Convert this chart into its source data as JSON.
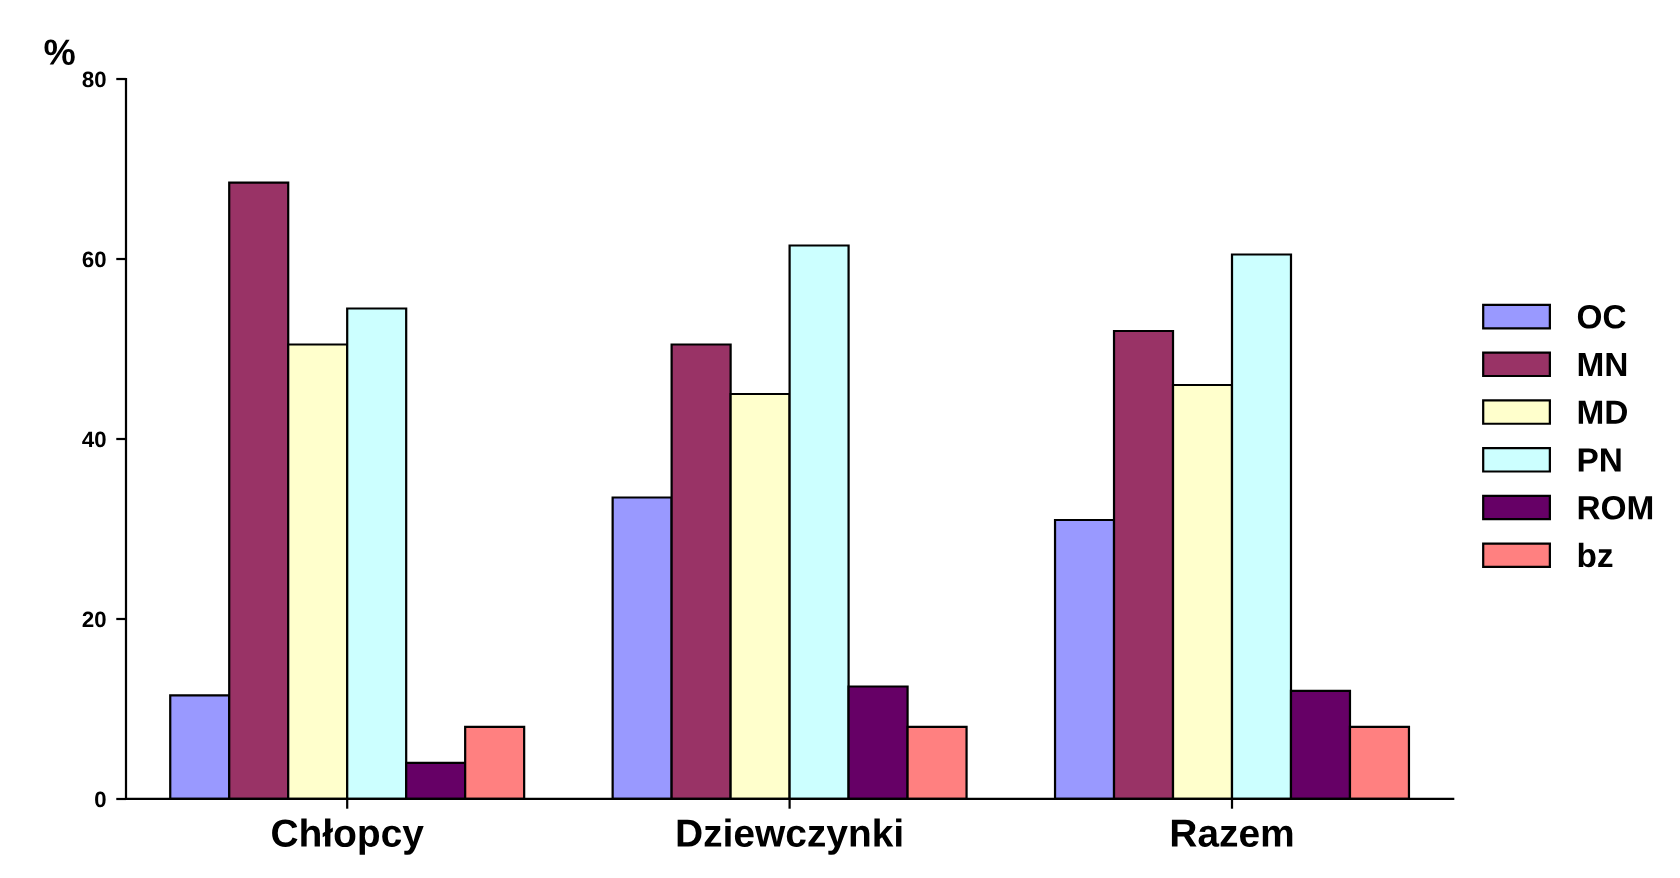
{
  "chart_data": {
    "type": "bar",
    "ylabel": "%",
    "categories": [
      "Chłopcy",
      "Dziewczynki",
      "Razem"
    ],
    "series": [
      {
        "name": "OC",
        "color": "#9999ff",
        "values": [
          11.5,
          33.5,
          31
        ]
      },
      {
        "name": "MN",
        "color": "#993366",
        "values": [
          68.5,
          50.5,
          52
        ]
      },
      {
        "name": "MD",
        "color": "#ffffcc",
        "values": [
          50.5,
          45,
          46
        ]
      },
      {
        "name": "PN",
        "color": "#ccffff",
        "values": [
          54.5,
          61.5,
          60.5
        ]
      },
      {
        "name": "ROM",
        "color": "#660066",
        "values": [
          4,
          12.5,
          12
        ]
      },
      {
        "name": "bz",
        "color": "#ff8080",
        "values": [
          8,
          8,
          8
        ]
      }
    ],
    "ylim": [
      0,
      80
    ],
    "yticks": [
      0,
      20,
      40,
      60,
      80
    ],
    "grid": false,
    "legend": "right"
  }
}
